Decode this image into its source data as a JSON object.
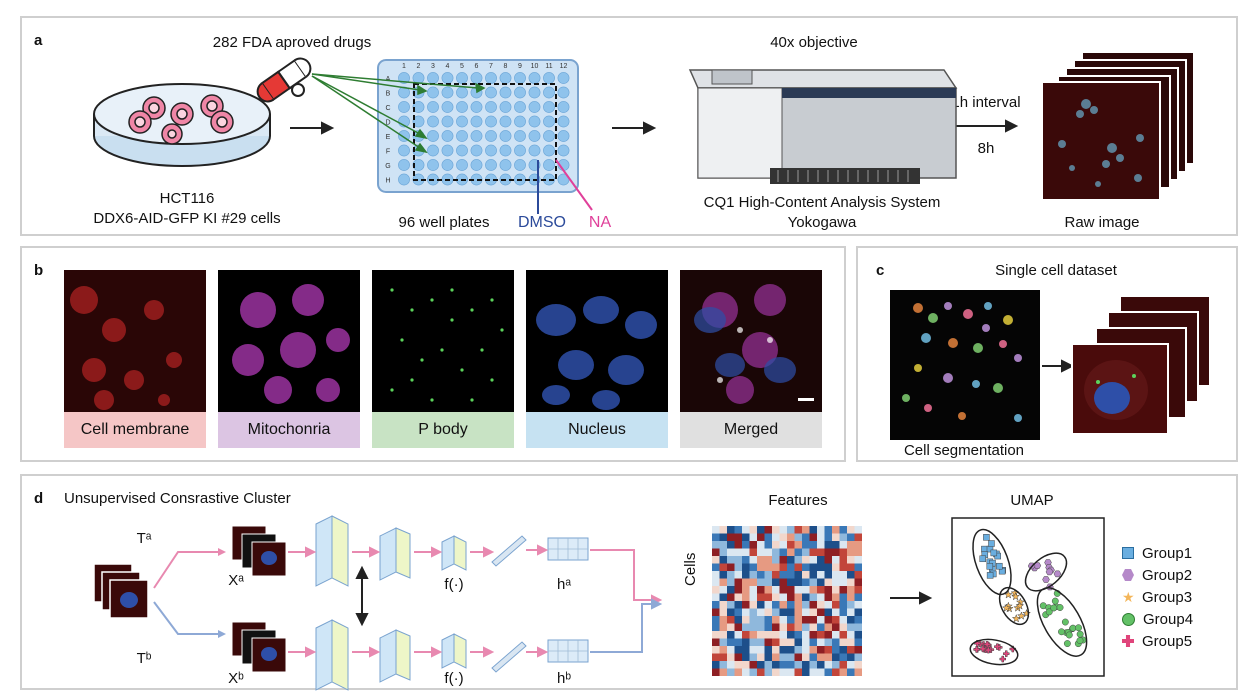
{
  "panels": {
    "a": {
      "label": "a",
      "drugs_label": "282 FDA aproved drugs",
      "cells_line1": "HCT116",
      "cells_line2": "DDX6-AID-GFP KI #29 cells",
      "plate_label": "96 well plates",
      "plate_cols": [
        "1",
        "2",
        "3",
        "4",
        "5",
        "6",
        "7",
        "8",
        "9",
        "10",
        "11",
        "12"
      ],
      "plate_rows": [
        "A",
        "B",
        "C",
        "D",
        "E",
        "F",
        "G",
        "H"
      ],
      "dmso_label": "DMSO",
      "na_label": "NA",
      "objective_label": "40x objective",
      "system_line1": "CQ1 High-Content Analysis System",
      "system_line2": "Yokogawa",
      "interval_label": "1h interval",
      "duration_label": "8h",
      "raw_label": "Raw image"
    },
    "b": {
      "label": "b",
      "channels": [
        {
          "name": "Cell membrane",
          "color": "#f5c6c6"
        },
        {
          "name": "Mitochonria",
          "color": "#dcc5e3"
        },
        {
          "name": "P body",
          "color": "#c8e3c4"
        },
        {
          "name": "Nucleus",
          "color": "#c6e2f2"
        },
        {
          "name": "Merged",
          "color": "#e0e0e0"
        }
      ]
    },
    "c": {
      "label": "c",
      "title": "Single cell dataset",
      "segmentation_label": "Cell segmentation"
    },
    "d": {
      "label": "d",
      "title": "Unsupervised Consrastive Cluster",
      "ta_label": "Tᵃ",
      "tb_label": "Tᵇ",
      "xa_label": "Xᵃ",
      "xb_label": "Xᵇ",
      "f_label_top": "f(·)",
      "f_label_bottom": "f(·)",
      "ha_label": "hᵃ",
      "hb_label": "hᵇ",
      "features_label": "Features",
      "cells_label": "Cells",
      "umap_label": "UMAP",
      "legend": [
        {
          "name": "Group1",
          "color": "#6aaee0",
          "shape": "square"
        },
        {
          "name": "Group2",
          "color": "#b589c9",
          "shape": "hexagon"
        },
        {
          "name": "Group3",
          "color": "#f4b65a",
          "shape": "star"
        },
        {
          "name": "Group4",
          "color": "#63c167",
          "shape": "circle"
        },
        {
          "name": "Group5",
          "color": "#e0457b",
          "shape": "cross"
        }
      ]
    }
  },
  "colors": {
    "branch_a": "#e889b0",
    "branch_b": "#8ea9d6",
    "drug_arrow": "#2e7d32",
    "dmso": "#2b4a9a",
    "na": "#e0409a"
  }
}
